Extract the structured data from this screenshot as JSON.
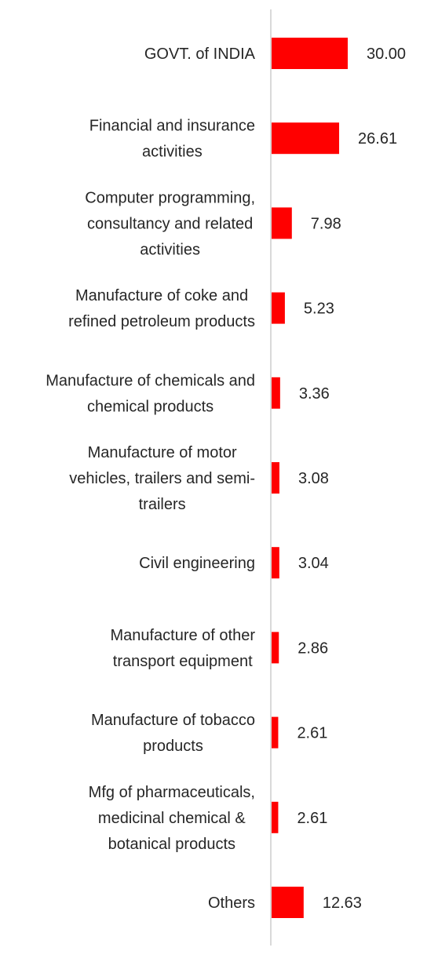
{
  "chart_data": {
    "type": "bar",
    "orientation": "horizontal",
    "categories": [
      "GOVT. of INDIA",
      "Financial and insurance activities",
      "Computer programming, consultancy and related activities",
      "Manufacture of coke and refined petroleum products",
      "Manufacture of chemicals and chemical products",
      "Manufacture of motor vehicles, trailers and semi-trailers",
      "Civil engineering",
      "Manufacture of other transport equipment",
      "Manufacture of tobacco products",
      "Mfg of pharmaceuticals, medicinal chemical & botanical products",
      "Others"
    ],
    "category_lines": [
      [
        "GOVT. of INDIA"
      ],
      [
        "Financial and insurance",
        "activities"
      ],
      [
        "Computer programming,",
        "consultancy and related",
        "activities"
      ],
      [
        "Manufacture of coke and",
        "refined petroleum products"
      ],
      [
        "Manufacture of chemicals and",
        "chemical products"
      ],
      [
        "Manufacture of motor",
        "vehicles, trailers and semi-",
        "trailers"
      ],
      [
        "Civil engineering"
      ],
      [
        "Manufacture of other",
        "transport equipment"
      ],
      [
        "Manufacture of tobacco",
        "products"
      ],
      [
        "Mfg of pharmaceuticals,",
        "medicinal chemical &",
        "botanical products"
      ],
      [
        "Others"
      ]
    ],
    "values": [
      30.0,
      26.61,
      7.98,
      5.23,
      3.36,
      3.08,
      3.04,
      2.86,
      2.61,
      2.61,
      12.63
    ],
    "value_labels": [
      "30.00",
      "26.61",
      "7.98",
      "5.23",
      "3.36",
      "3.08",
      "3.04",
      "2.86",
      "2.61",
      "2.61",
      "12.63"
    ],
    "title": "",
    "xlabel": "",
    "ylabel": "",
    "xlim": [
      0,
      30
    ],
    "grid": false,
    "legend": "none",
    "bar_color": "#ff0000",
    "axis_color": "#d9d9d9",
    "text_color": "#262626"
  }
}
